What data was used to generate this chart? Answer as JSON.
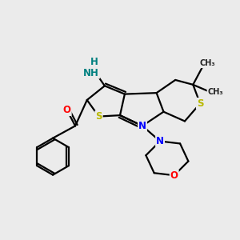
{
  "background_color": "#ebebeb",
  "bond_color": "#000000",
  "atom_colors": {
    "S": "#b8b800",
    "N": "#0000ff",
    "O": "#ff0000",
    "C": "#000000",
    "NH2": "#008080"
  },
  "figsize": [
    3.0,
    3.0
  ],
  "dpi": 100,
  "xlim": [
    0,
    10
  ],
  "ylim": [
    0,
    10
  ]
}
